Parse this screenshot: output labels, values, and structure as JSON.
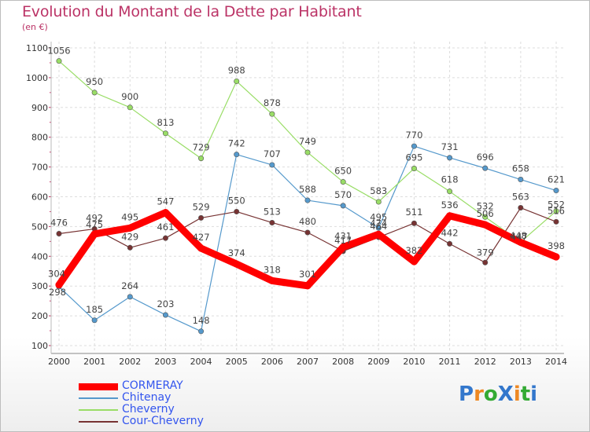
{
  "title": "Evolution du Montant de la Dette par Habitant",
  "subtitle": "(en €)",
  "logo": {
    "text": "ProXiti",
    "colors": [
      "#3377cc",
      "#ee8822",
      "#33aa33",
      "#3377cc",
      "#ee8822",
      "#33aa33",
      "#3377cc"
    ]
  },
  "chart_data": {
    "type": "line",
    "categories": [
      "2000",
      "2001",
      "2002",
      "2003",
      "2004",
      "2005",
      "2006",
      "2007",
      "2008",
      "2009",
      "2010",
      "2011",
      "2012",
      "2013",
      "2014"
    ],
    "ylim": [
      100,
      1100
    ],
    "yticks": [
      100,
      200,
      300,
      400,
      500,
      600,
      700,
      800,
      900,
      1000,
      1100
    ],
    "grid": true,
    "legend_position": "bottom-left",
    "series": [
      {
        "name": "Chitenay",
        "color": "#5599cc",
        "width": 1.2,
        "values": [
          298,
          185,
          264,
          203,
          148,
          742,
          707,
          588,
          570,
          495,
          770,
          731,
          696,
          658,
          621
        ]
      },
      {
        "name": "Cheverny",
        "color": "#99dd66",
        "width": 1.2,
        "values": [
          1056,
          950,
          900,
          813,
          729,
          988,
          878,
          749,
          650,
          583,
          695,
          618,
          532,
          448,
          552
        ]
      },
      {
        "name": "Cour-Cheverny",
        "color": "#773333",
        "width": 1.2,
        "values": [
          476,
          492,
          429,
          461,
          529,
          550,
          513,
          480,
          417,
          464,
          511,
          442,
          379,
          563,
          516
        ]
      },
      {
        "name": "CORMERAY",
        "color": "#ff0000",
        "width": 9,
        "values": [
          304,
          475,
          495,
          547,
          427,
          374,
          318,
          301,
          431,
          474,
          382,
          536,
          506,
          447,
          398
        ]
      }
    ]
  }
}
